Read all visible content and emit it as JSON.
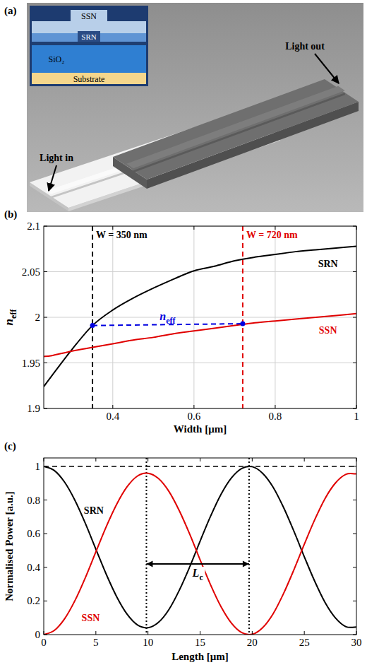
{
  "diagram": {
    "panel": "(a)",
    "annotations": [
      "Light in",
      "Light out"
    ],
    "inset": {
      "layers": [
        "SSN",
        "SRN",
        "SiO₂",
        "Substrate"
      ]
    }
  },
  "chart_data": [
    {
      "type": "line",
      "panel": "(b)",
      "xlabel": "Width [μm]",
      "ylabel": {
        "text": "n",
        "subscript": "eff"
      },
      "x": [
        0.23,
        0.25,
        0.3,
        0.35,
        0.4,
        0.45,
        0.5,
        0.55,
        0.6,
        0.65,
        0.7,
        0.75,
        0.8,
        0.85,
        0.9,
        0.95,
        1.0
      ],
      "xlim": [
        0.23,
        1
      ],
      "xticks": [
        0.4,
        0.6,
        0.8,
        1
      ],
      "ylim": [
        1.9,
        2.1
      ],
      "yticks": [
        1.9,
        1.95,
        2,
        2.05,
        2.1
      ],
      "grid": true,
      "series": [
        {
          "name": "SRN",
          "color": "#000000",
          "values": [
            1.924,
            1.936,
            1.965,
            1.991,
            2.008,
            2.021,
            2.032,
            2.042,
            2.051,
            2.056,
            2.062,
            2.066,
            2.069,
            2.072,
            2.074,
            2.076,
            2.078
          ]
        },
        {
          "name": "SSN",
          "color": "#e00000",
          "values": [
            1.957,
            1.958,
            1.963,
            1.967,
            1.971,
            1.975,
            1.978,
            1.982,
            1.985,
            1.988,
            1.991,
            1.994,
            1.996,
            1.998,
            2.0,
            2.002,
            2.004
          ]
        }
      ],
      "vlines": [
        {
          "x": 0.35,
          "label": "W = 350 nm",
          "color": "#000000",
          "line_style": "dashed"
        },
        {
          "x": 0.72,
          "label": "W = 720 nm",
          "color": "#e00000",
          "line_style": "dashed"
        }
      ],
      "span": {
        "x": [
          0.35,
          0.72
        ],
        "y": [
          1.991,
          1.993
        ],
        "color": "#0000e0",
        "line_style": "dashed",
        "marker": "circle",
        "label": {
          "text": "n",
          "subscript": "eff"
        }
      }
    },
    {
      "type": "line",
      "panel": "(c)",
      "xlabel": "Length [μm]",
      "ylabel": "Normalised Power [a.u.]",
      "x": [
        0,
        1,
        2,
        3,
        4,
        5,
        6,
        7,
        8,
        9,
        10,
        11,
        12,
        13,
        14,
        15,
        16,
        17,
        18,
        19,
        20,
        21,
        22,
        23,
        24,
        25,
        26,
        27,
        28,
        29,
        30
      ],
      "xlim": [
        0,
        30
      ],
      "xticks": [
        0,
        5,
        10,
        15,
        20,
        25,
        30
      ],
      "ylim": [
        0,
        1.05
      ],
      "yticks": [
        0,
        0.2,
        0.4,
        0.6,
        0.8,
        1
      ],
      "grid": false,
      "series": [
        {
          "name": "SRN",
          "color": "#000000",
          "values": [
            1,
            0.976,
            0.906,
            0.797,
            0.66,
            0.508,
            0.358,
            0.225,
            0.121,
            0.057,
            0.041,
            0.072,
            0.148,
            0.263,
            0.402,
            0.555,
            0.703,
            0.833,
            0.931,
            0.988,
            0.998,
            0.959,
            0.877,
            0.757,
            0.615,
            0.463,
            0.317,
            0.19,
            0.098,
            0.047,
            0.045
          ]
        },
        {
          "name": "SSN",
          "color": "#e00000",
          "values": [
            0,
            0.024,
            0.094,
            0.203,
            0.34,
            0.492,
            0.642,
            0.775,
            0.879,
            0.943,
            0.959,
            0.928,
            0.852,
            0.737,
            0.598,
            0.445,
            0.297,
            0.167,
            0.069,
            0.012,
            0.002,
            0.041,
            0.123,
            0.243,
            0.385,
            0.537,
            0.683,
            0.81,
            0.902,
            0.953,
            0.955
          ]
        }
      ],
      "hlines": [
        {
          "y": 1,
          "color": "#000000",
          "line_style": "dashed"
        }
      ],
      "vlines": [
        {
          "x": 9.85,
          "color": "#000000",
          "line_style": "dotted"
        },
        {
          "x": 19.7,
          "color": "#000000",
          "line_style": "dotted"
        }
      ],
      "span": {
        "x": [
          9.85,
          19.7
        ],
        "y": [
          0.42,
          0.42
        ],
        "color": "#000000",
        "line_style": "solid",
        "marker": "arrow",
        "label": {
          "text": "L",
          "subscript": "c"
        }
      }
    }
  ]
}
